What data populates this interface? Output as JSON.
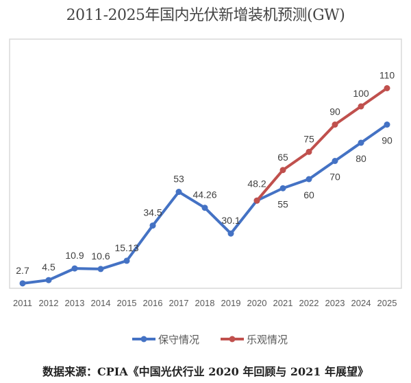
{
  "chart_data": {
    "type": "line",
    "title": "2011-2025年国内光伏新增装机预测(GW)",
    "categories": [
      "2011",
      "2012",
      "2013",
      "2014",
      "2015",
      "2016",
      "2017",
      "2018",
      "2019",
      "2020",
      "2021",
      "2022",
      "2023",
      "2024",
      "2025"
    ],
    "series": [
      {
        "name": "保守情况",
        "color": "#4472C4",
        "values": [
          2.7,
          4.5,
          10.9,
          10.6,
          15.13,
          34.5,
          53,
          44.26,
          30.1,
          48.2,
          55,
          60,
          70,
          80,
          90
        ],
        "labels": [
          "2.7",
          "4.5",
          "10.9",
          "10.6",
          "15.13",
          "34.5",
          "53",
          "44.26",
          "30.1",
          "48.2",
          "55",
          "60",
          "70",
          "80",
          "90"
        ]
      },
      {
        "name": "乐观情况",
        "color": "#C0504D",
        "values": [
          null,
          null,
          null,
          null,
          null,
          null,
          null,
          null,
          null,
          48.2,
          65,
          75,
          90,
          100,
          110
        ],
        "labels": [
          null,
          null,
          null,
          null,
          null,
          null,
          null,
          null,
          null,
          null,
          "65",
          "75",
          "90",
          "100",
          "110"
        ]
      }
    ],
    "xlabel": "",
    "ylabel": "",
    "ylim": [
      0,
      110
    ],
    "grid": false,
    "legend": "bottom"
  },
  "source": "数据来源：CPIA《中国光伏行业 2020 年回顾与 2021 年展望》"
}
